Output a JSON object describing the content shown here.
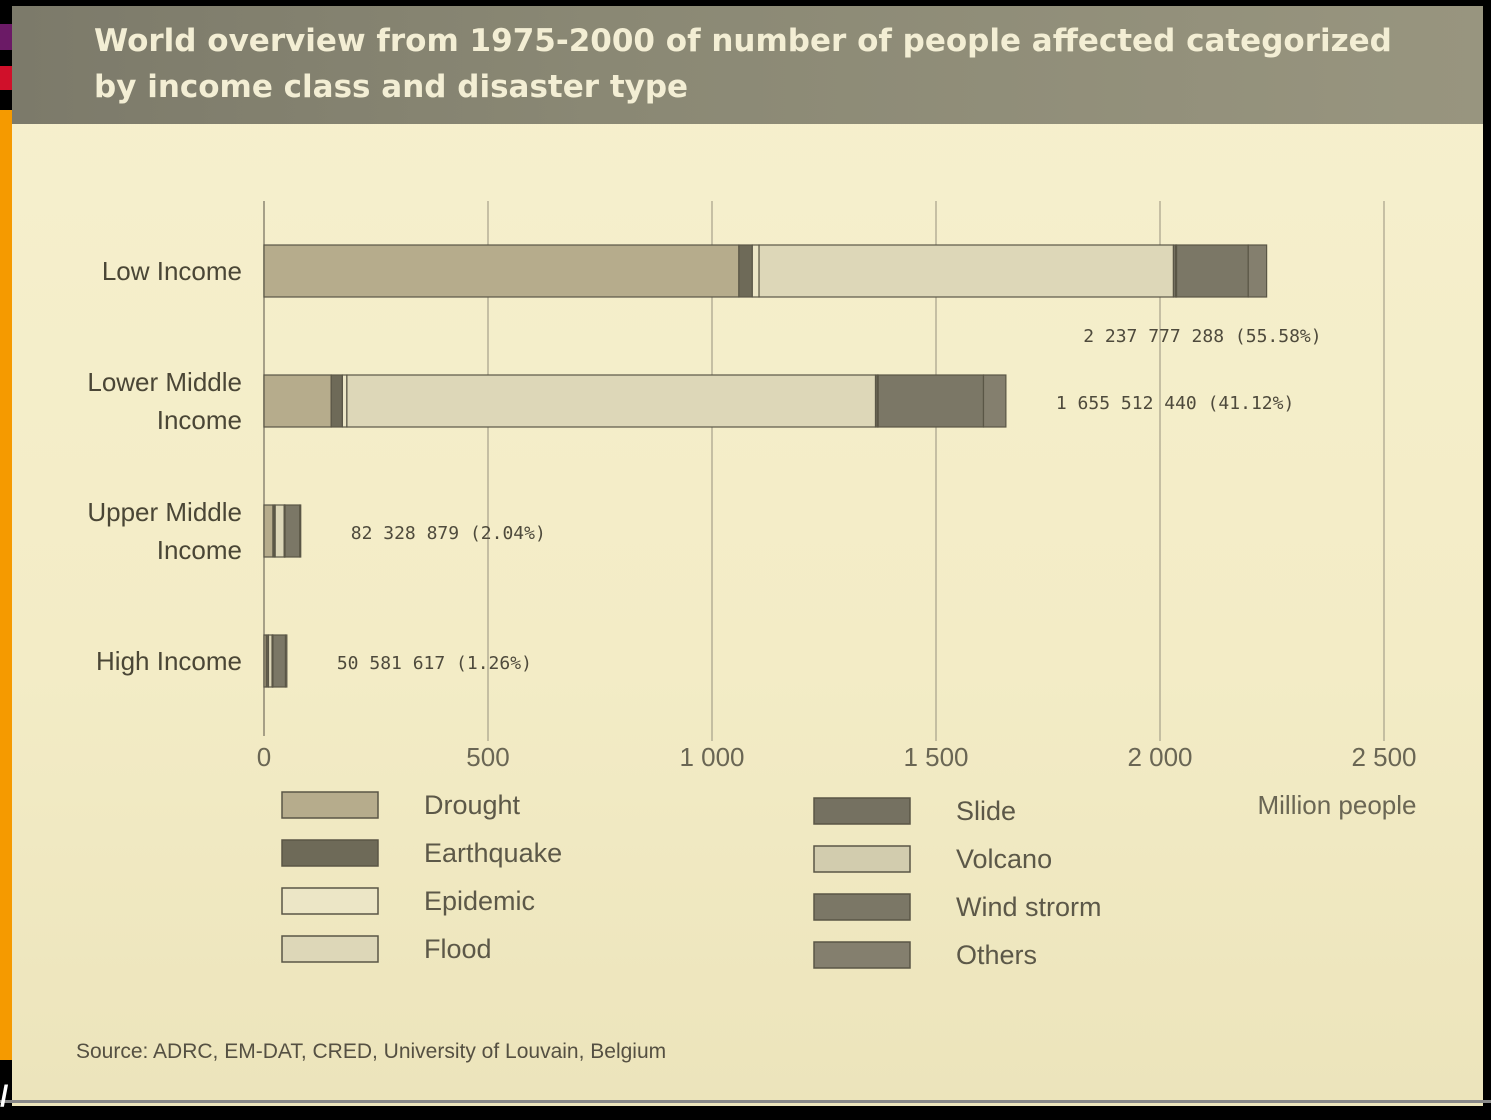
{
  "chart_data": {
    "type": "bar",
    "orientation": "horizontal",
    "stacked": true,
    "title": "World overview from 1975-2000 of number of people affected categorized by income class and disaster type",
    "xlabel": "Million people",
    "xlim": [
      0,
      2500
    ],
    "xticks": [
      0,
      500,
      1000,
      1500,
      2000,
      2500
    ],
    "xtick_labels": [
      "0",
      "500",
      "1 000",
      "1 500",
      "2 000",
      "2 500"
    ],
    "grid": "vertical",
    "categories": [
      "Low Income",
      "Lower Middle Income",
      "Upper Middle Income",
      "High Income"
    ],
    "category_lines": [
      [
        "Low Income"
      ],
      [
        "Lower Middle",
        "Income"
      ],
      [
        "Upper Middle",
        "Income"
      ],
      [
        "High Income"
      ]
    ],
    "series": [
      {
        "name": "Drought",
        "color": "#b6ac8c",
        "values": [
          1060,
          150,
          20,
          5
        ]
      },
      {
        "name": "Earthquake",
        "color": "#6e6a58",
        "values": [
          30,
          25,
          3,
          4
        ]
      },
      {
        "name": "Epidemic",
        "color": "#ece6c6",
        "values": [
          15,
          10,
          2,
          1
        ]
      },
      {
        "name": "Flood",
        "color": "#ddd7b8",
        "values": [
          925,
          1180,
          20,
          8
        ]
      },
      {
        "name": "Slide",
        "color": "#757161",
        "values": [
          5,
          4,
          1,
          1
        ]
      },
      {
        "name": "Volcano",
        "color": "#d2ccae",
        "values": [
          2,
          2,
          1,
          1
        ]
      },
      {
        "name": "Wind strorm",
        "color": "#7b7766",
        "values": [
          160,
          235,
          33,
          28
        ]
      },
      {
        "name": "Others",
        "color": "#847f6e",
        "values": [
          41,
          50,
          2,
          3
        ]
      }
    ],
    "data_labels": [
      "2 237 777 288 (55.58%)",
      "1 655 512 440 (41.12%)",
      "82 328 879 (2.04%)",
      "50 581 617 (1.26%)"
    ],
    "legend_position": "bottom"
  },
  "source": "Source: ADRC, EM-DAT, CRED, University of Louvain, Belgium",
  "colors": {
    "title_band": "#858270",
    "paper": "#f4eec8",
    "left_strip": [
      "#6b1a66",
      "#c0103a",
      "#f08a00"
    ]
  }
}
